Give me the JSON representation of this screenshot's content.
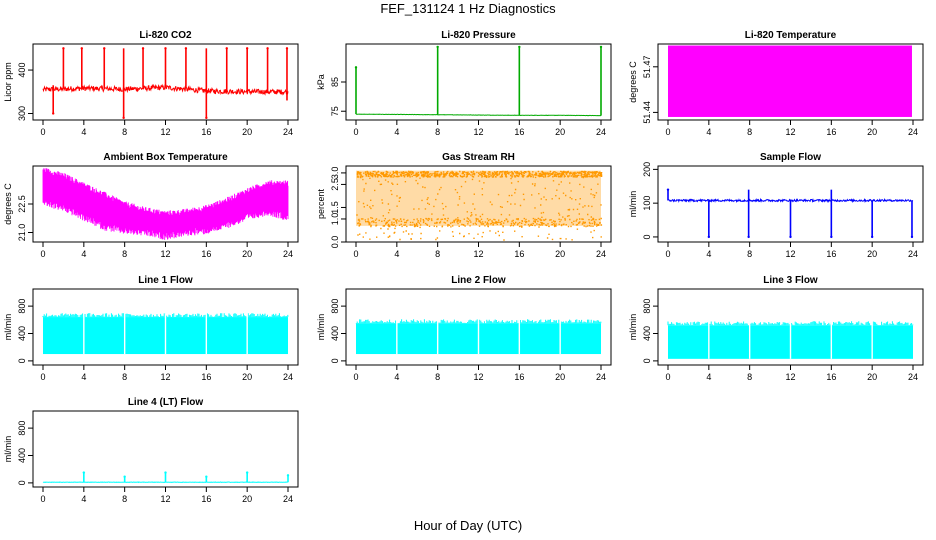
{
  "page": {
    "title": "FEF_131124  1 Hz Diagnostics",
    "xlabel": "Hour of Day (UTC)"
  },
  "chart_data": [
    {
      "id": "co2",
      "type": "line",
      "title": "Li-820 CO2",
      "ylabel": "Licor ppm",
      "color": "#ff0000",
      "xlim": [
        0,
        24
      ],
      "ylim": [
        285,
        460
      ],
      "xticks": [
        0,
        4,
        8,
        12,
        16,
        20,
        24
      ],
      "yticks": [
        300,
        400
      ],
      "baseline": [
        [
          0,
          355
        ],
        [
          4,
          358
        ],
        [
          8,
          356
        ],
        [
          12,
          360
        ],
        [
          16,
          352
        ],
        [
          20,
          350
        ],
        [
          24,
          350
        ]
      ],
      "noise": 6,
      "spikes": [
        [
          1.0,
          300,
          365
        ],
        [
          2.0,
          450,
          358
        ],
        [
          3.8,
          450,
          358
        ],
        [
          6.0,
          450,
          357
        ],
        [
          7.9,
          290,
          450
        ],
        [
          9.8,
          450,
          357
        ],
        [
          12.0,
          450,
          360
        ],
        [
          14.0,
          450,
          358
        ],
        [
          16.0,
          290,
          450
        ],
        [
          18.0,
          450,
          352
        ],
        [
          20.0,
          450,
          351
        ],
        [
          22.0,
          450,
          350
        ],
        [
          23.9,
          450,
          330
        ]
      ]
    },
    {
      "id": "pressure",
      "type": "line",
      "title": "Li-820 Pressure",
      "ylabel": "kPa",
      "color": "#00aa00",
      "xlim": [
        0,
        24
      ],
      "ylim": [
        72,
        98
      ],
      "xticks": [
        0,
        4,
        8,
        12,
        16,
        20,
        24
      ],
      "yticks": [
        75,
        85
      ],
      "baseline": [
        [
          0,
          74.0
        ],
        [
          4,
          73.9
        ],
        [
          8,
          73.8
        ],
        [
          12,
          73.7
        ],
        [
          16,
          73.6
        ],
        [
          20,
          73.6
        ],
        [
          24,
          73.5
        ]
      ],
      "noise": 0.05,
      "spikes": [
        [
          0.0,
          90,
          74
        ],
        [
          8.0,
          97,
          73.8
        ],
        [
          16.0,
          97,
          73.6
        ],
        [
          24.0,
          97,
          73.5
        ]
      ]
    },
    {
      "id": "licor_temp",
      "type": "area",
      "title": "Li-820 Temperature",
      "ylabel": "degrees C",
      "color": "#ff00ff",
      "xlim": [
        0,
        24
      ],
      "ylim": [
        51.435,
        51.485
      ],
      "xticks": [
        0,
        4,
        8,
        12,
        16,
        20,
        24
      ],
      "yticks": [
        51.44,
        51.47
      ],
      "band": {
        "x0": 0,
        "x1": 23.9,
        "low": 51.437,
        "high": 51.484
      }
    },
    {
      "id": "box_temp",
      "type": "line",
      "title": "Ambient Box Temperature",
      "ylabel": "degrees C",
      "color": "#ff00ff",
      "xlim": [
        0,
        24
      ],
      "ylim": [
        20.5,
        24.5
      ],
      "xticks": [
        0,
        4,
        8,
        12,
        16,
        20,
        24
      ],
      "yticks": [
        21.0,
        22.5
      ],
      "upper": [
        [
          0,
          24.3
        ],
        [
          2,
          24.0
        ],
        [
          4,
          23.5
        ],
        [
          6,
          23.0
        ],
        [
          8,
          22.5
        ],
        [
          10,
          22.2
        ],
        [
          12,
          22.0
        ],
        [
          14,
          22.1
        ],
        [
          16,
          22.3
        ],
        [
          18,
          22.7
        ],
        [
          20,
          23.2
        ],
        [
          22,
          23.6
        ],
        [
          24,
          23.6
        ]
      ],
      "lower": [
        [
          0,
          22.8
        ],
        [
          2,
          22.5
        ],
        [
          4,
          22.0
        ],
        [
          6,
          21.5
        ],
        [
          8,
          21.3
        ],
        [
          10,
          21.2
        ],
        [
          12,
          21.0
        ],
        [
          14,
          21.2
        ],
        [
          16,
          21.3
        ],
        [
          18,
          21.6
        ],
        [
          20,
          22.0
        ],
        [
          22,
          22.3
        ],
        [
          24,
          22.0
        ]
      ]
    },
    {
      "id": "rh",
      "type": "scatter",
      "title": "Gas Stream RH",
      "ylabel": "percent",
      "color": "#ff9900",
      "xlim": [
        0,
        24
      ],
      "ylim": [
        0,
        3.3
      ],
      "xticks": [
        0,
        4,
        8,
        12,
        16,
        20,
        24
      ],
      "yticks": [
        0.0,
        1.0,
        1.5,
        2.5,
        3.0
      ],
      "band": {
        "x0": 0,
        "x1": 24,
        "low": 0.7,
        "high": 3.1
      }
    },
    {
      "id": "sample_flow",
      "type": "line",
      "title": "Sample Flow",
      "ylabel": "ml/min",
      "color": "#0000ff",
      "xlim": [
        0,
        24
      ],
      "ylim": [
        -15,
        210
      ],
      "xticks": [
        0,
        4,
        8,
        12,
        16,
        20,
        24
      ],
      "yticks": [
        0,
        100,
        200
      ],
      "baseline": [
        [
          0,
          108
        ],
        [
          24,
          108
        ]
      ],
      "noise": 3,
      "spikes": [
        [
          0.0,
          140,
          108
        ],
        [
          4.0,
          0,
          108
        ],
        [
          7.9,
          0,
          140
        ],
        [
          12.0,
          0,
          108
        ],
        [
          16.0,
          0,
          140
        ],
        [
          20.0,
          0,
          108
        ],
        [
          23.9,
          0,
          108
        ]
      ]
    },
    {
      "id": "line1",
      "type": "area",
      "title": "Line 1 Flow",
      "ylabel": "ml/min",
      "color": "#00ffff",
      "xlim": [
        0,
        24
      ],
      "ylim": [
        -60,
        1050
      ],
      "xticks": [
        0,
        4,
        8,
        12,
        16,
        20,
        24
      ],
      "yticks": [
        0,
        400,
        800
      ],
      "band": {
        "x0": 0,
        "x1": 24,
        "low": 100,
        "high": 640
      },
      "gaps": [
        4,
        8,
        12,
        16,
        20
      ]
    },
    {
      "id": "line2",
      "type": "area",
      "title": "Line 2 Flow",
      "ylabel": "ml/min",
      "color": "#00ffff",
      "xlim": [
        0,
        24
      ],
      "ylim": [
        -60,
        1050
      ],
      "xticks": [
        0,
        4,
        8,
        12,
        16,
        20,
        24
      ],
      "yticks": [
        0,
        400,
        800
      ],
      "band": {
        "x0": 0,
        "x1": 24,
        "low": 100,
        "high": 550
      },
      "gaps": [
        4,
        8,
        12,
        16,
        20
      ]
    },
    {
      "id": "line3",
      "type": "area",
      "title": "Line 3 Flow",
      "ylabel": "ml/min",
      "color": "#00ffff",
      "xlim": [
        0,
        24
      ],
      "ylim": [
        -60,
        1050
      ],
      "xticks": [
        0,
        4,
        8,
        12,
        16,
        20,
        24
      ],
      "yticks": [
        0,
        400,
        800
      ],
      "band": {
        "x0": 0,
        "x1": 24,
        "low": 30,
        "high": 520
      },
      "gaps": [
        4,
        8,
        12,
        16,
        20
      ]
    },
    {
      "id": "line4",
      "type": "line",
      "title": "Line 4 (LT) Flow",
      "ylabel": "ml/min",
      "color": "#00ffff",
      "xlim": [
        0,
        24
      ],
      "ylim": [
        -60,
        1050
      ],
      "xticks": [
        0,
        4,
        8,
        12,
        16,
        20,
        24
      ],
      "yticks": [
        0,
        400,
        800
      ],
      "baseline": [
        [
          0,
          10
        ],
        [
          24,
          10
        ]
      ],
      "noise": 3,
      "spikes": [
        [
          4.0,
          150,
          10
        ],
        [
          8.0,
          90,
          10
        ],
        [
          12.0,
          150,
          10
        ],
        [
          16.0,
          90,
          10
        ],
        [
          20.0,
          150,
          10
        ],
        [
          24.0,
          110,
          10
        ]
      ]
    }
  ]
}
